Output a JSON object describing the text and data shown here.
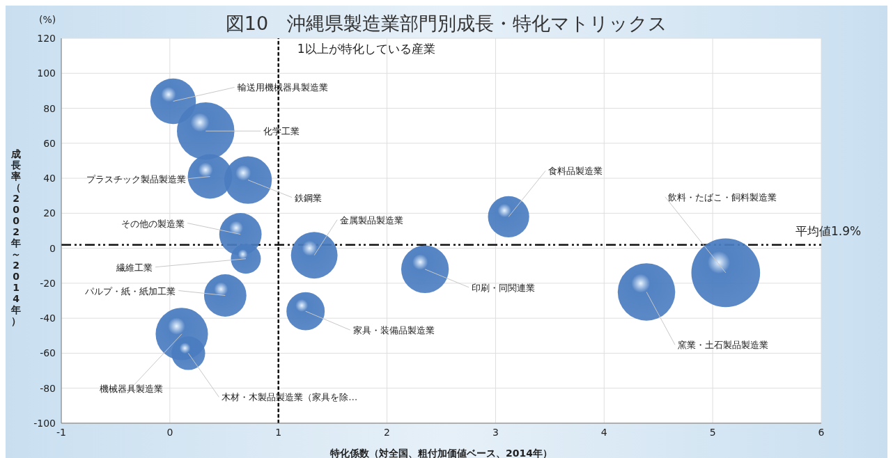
{
  "chart_data": {
    "type": "bubble",
    "title": "図10　沖縄県製造業部門別成長・特化マトリックス",
    "xlabel": "特化係数（対全国、粗付加価値ベース、2014年）",
    "ylabel": "成長率（2002年～2014年）",
    "xlim": [
      -1,
      6
    ],
    "xticks": [
      -1,
      0,
      1,
      2,
      3,
      4,
      5,
      6
    ],
    "ylim": [
      -100,
      120
    ],
    "yticks": [
      -100,
      -80,
      -60,
      -40,
      -20,
      0,
      20,
      40,
      60,
      80,
      100,
      120
    ],
    "grid": true,
    "series": [
      {
        "name": "輸送用機械器具製造業",
        "color": "#4a7cc0",
        "x": [
          0.03
        ],
        "values": [
          84
        ],
        "sizes": [
          0.44
        ]
      },
      {
        "name": "化学工業",
        "color": "#4a7cc0",
        "x": [
          0.33
        ],
        "values": [
          67
        ],
        "sizes": [
          0.7
        ]
      },
      {
        "name": "プラスチック製品製造業",
        "color": "#4a7cc0",
        "x": [
          0.37
        ],
        "values": [
          41
        ],
        "sizes": [
          0.42
        ]
      },
      {
        "name": "鉄鋼業",
        "color": "#4a7cc0",
        "x": [
          0.72
        ],
        "values": [
          39
        ],
        "sizes": [
          0.48
        ]
      },
      {
        "name": "その他の製造業",
        "color": "#4a7cc0",
        "x": [
          0.65
        ],
        "values": [
          8
        ],
        "sizes": [
          0.38
        ]
      },
      {
        "name": "繊維工業",
        "color": "#4a7cc0",
        "x": [
          0.7
        ],
        "values": [
          -6
        ],
        "sizes": [
          0.19
        ]
      },
      {
        "name": "パルプ・紙・紙加工業",
        "color": "#4a7cc0",
        "x": [
          0.51
        ],
        "values": [
          -27
        ],
        "sizes": [
          0.38
        ]
      },
      {
        "name": "機械器具製造業",
        "color": "#4a7cc0",
        "x": [
          0.11
        ],
        "values": [
          -49
        ],
        "sizes": [
          0.58
        ]
      },
      {
        "name": "木材・木製品製造業（家具を除…",
        "color": "#4a7cc0",
        "x": [
          0.17
        ],
        "values": [
          -60
        ],
        "sizes": [
          0.24
        ]
      },
      {
        "name": "金属製品製造業",
        "color": "#4a7cc0",
        "x": [
          1.33
        ],
        "values": [
          -4
        ],
        "sizes": [
          0.46
        ]
      },
      {
        "name": "家具・装備品製造業",
        "color": "#4a7cc0",
        "x": [
          1.25
        ],
        "values": [
          -36
        ],
        "sizes": [
          0.31
        ]
      },
      {
        "name": "印刷・同関連業",
        "color": "#4a7cc0",
        "x": [
          2.35
        ],
        "values": [
          -12
        ],
        "sizes": [
          0.48
        ]
      },
      {
        "name": "食料品製造業",
        "color": "#4a7cc0",
        "x": [
          3.12
        ],
        "values": [
          18
        ],
        "sizes": [
          0.36
        ]
      },
      {
        "name": "窯業・土石製品製造業",
        "color": "#4a7cc0",
        "x": [
          4.39
        ],
        "values": [
          -25
        ],
        "sizes": [
          0.7
        ]
      },
      {
        "name": "飲料・たばこ・飼料製造業",
        "color": "#4a7cc0",
        "x": [
          5.12
        ],
        "values": [
          -14
        ],
        "sizes": [
          1
        ]
      }
    ],
    "ref_lines": [
      {
        "axis": "x",
        "value": 1,
        "label": "1以上が特化している産業",
        "line_style": "dashed",
        "color": "#111111"
      },
      {
        "axis": "y",
        "value": 1.9,
        "label": "平均値1.9%",
        "line_style": "dashdot",
        "color": "#111111"
      }
    ],
    "annotations": [
      "(%)"
    ]
  }
}
